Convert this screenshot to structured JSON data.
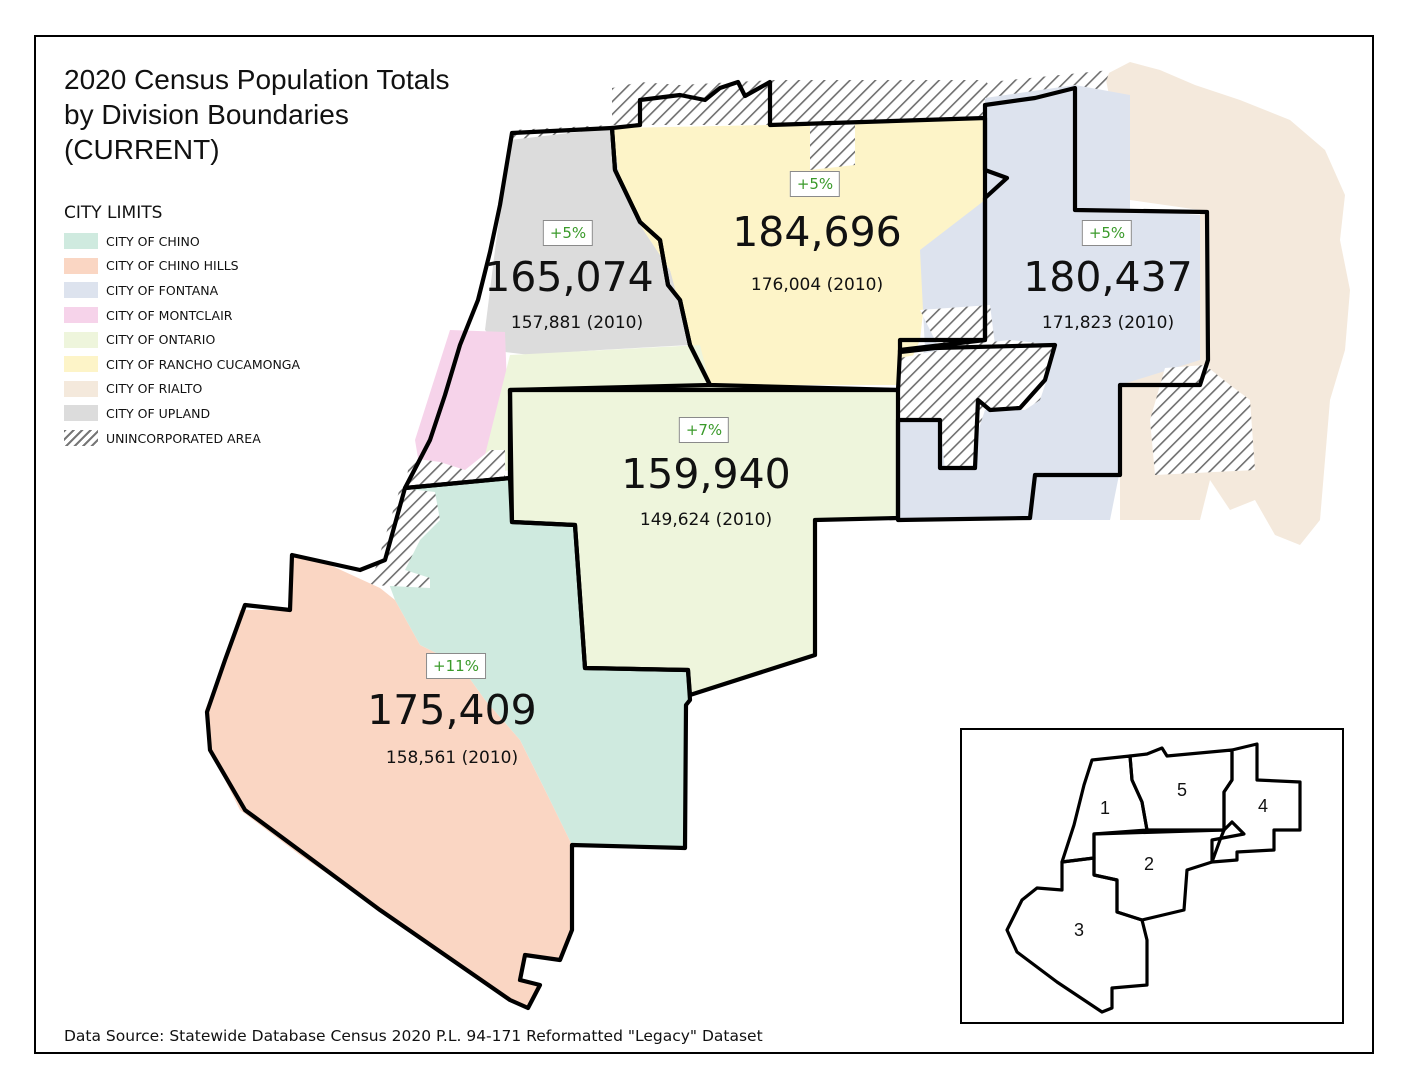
{
  "title_lines": [
    "2020 Census Population Totals",
    "by Division Boundaries",
    "(CURRENT)"
  ],
  "legend": {
    "title": "CITY LIMITS",
    "items": [
      {
        "label": "CITY OF CHINO",
        "color": "#cfeadf"
      },
      {
        "label": "CITY OF CHINO HILLS",
        "color": "#fad6c3"
      },
      {
        "label": "CITY OF FONTANA",
        "color": "#dde3ee"
      },
      {
        "label": "CITY OF MONTCLAIR",
        "color": "#f6d3ea"
      },
      {
        "label": "CITY OF ONTARIO",
        "color": "#eef5dc"
      },
      {
        "label": "CITY OF RANCHO CUCAMONGA",
        "color": "#fdf4c8"
      },
      {
        "label": "CITY OF RIALTO",
        "color": "#f4e9dc"
      },
      {
        "label": "CITY OF UPLAND",
        "color": "#dcdcdc"
      },
      {
        "label": "UNINCORPORATED AREA",
        "color": "hatch"
      }
    ]
  },
  "divisions": [
    {
      "id": "1",
      "population_2020": "165,074",
      "population_2010": "157,881 (2010)",
      "change": "+5%"
    },
    {
      "id": "5",
      "population_2020": "184,696",
      "population_2010": "176,004 (2010)",
      "change": "+5%"
    },
    {
      "id": "4",
      "population_2020": "180,437",
      "population_2010": "171,823 (2010)",
      "change": "+5%"
    },
    {
      "id": "2",
      "population_2020": "159,940",
      "population_2010": "149,624 (2010)",
      "change": "+7%"
    },
    {
      "id": "3",
      "population_2020": "175,409",
      "population_2010": "158,561 (2010)",
      "change": "+11%"
    }
  ],
  "inset_labels": [
    "1",
    "5",
    "4",
    "2",
    "3"
  ],
  "source": "Data Source: Statewide Database Census 2020 P.L. 94-171 Reformatted \"Legacy\" Dataset",
  "colors": {
    "change_text": "#3a9a2a",
    "boundary": "#000000"
  }
}
